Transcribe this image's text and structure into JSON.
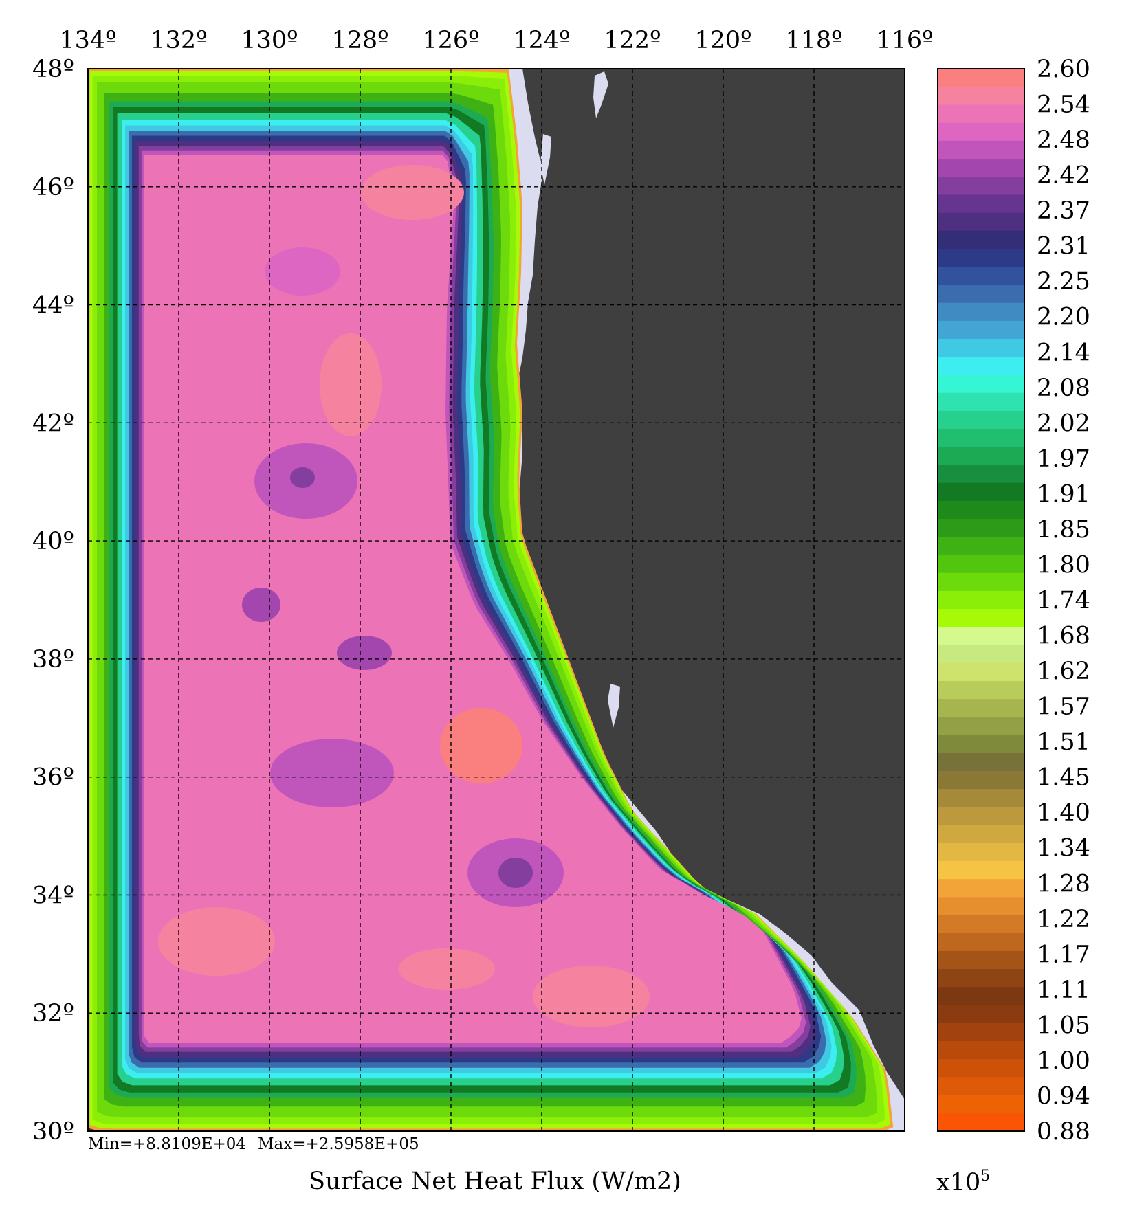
{
  "chart_data": {
    "type": "heatmap",
    "title": "Surface Net Heat Flux (W/m2)",
    "colorbar_unit": "x10",
    "colorbar_unit_exponent": "5",
    "stats": {
      "min_label": "Min=+8.8109E+04",
      "max_label": "Max=+2.5958E+05"
    },
    "x_axis": {
      "range": [
        -134,
        -116
      ],
      "ticks": [
        -134,
        -132,
        -130,
        -128,
        -126,
        -124,
        -122,
        -120,
        -118,
        -116
      ],
      "tick_labels": [
        "134º",
        "132º",
        "130º",
        "128º",
        "126º",
        "124º",
        "122º",
        "120º",
        "118º",
        "116º"
      ]
    },
    "y_axis": {
      "range": [
        30,
        48
      ],
      "ticks": [
        48,
        46,
        44,
        42,
        40,
        38,
        36,
        34,
        32,
        30
      ],
      "tick_labels": [
        "48º",
        "46º",
        "44º",
        "42º",
        "40º",
        "38º",
        "36º",
        "34º",
        "32º",
        "30º"
      ]
    },
    "grid": true,
    "colorbar": {
      "labels": [
        "2.60",
        "2.54",
        "2.48",
        "2.42",
        "2.37",
        "2.31",
        "2.25",
        "2.20",
        "2.14",
        "2.08",
        "2.02",
        "1.97",
        "1.91",
        "1.85",
        "1.80",
        "1.74",
        "1.68",
        "1.62",
        "1.57",
        "1.51",
        "1.45",
        "1.40",
        "1.34",
        "1.28",
        "1.22",
        "1.17",
        "1.11",
        "1.05",
        "1.00",
        "0.94",
        "0.88"
      ],
      "colors": [
        "#FA8080",
        "#F583A0",
        "#EC74B6",
        "#DE66C3",
        "#C055BC",
        "#A347AE",
        "#843E9E",
        "#663590",
        "#4E2F80",
        "#342D78",
        "#2C3A87",
        "#31529C",
        "#3B6CAE",
        "#3F8BC2",
        "#42A5D4",
        "#3FC9E3",
        "#3DEEF0",
        "#36F5D4",
        "#2EE3B0",
        "#28D08D",
        "#22BE6F",
        "#1DAA55",
        "#178F3E",
        "#127A22",
        "#1F8A1C",
        "#2D9B17",
        "#3EB214",
        "#52C60F",
        "#6DDA0C",
        "#8AEE09",
        "#A6FA08",
        "#D4FA8E",
        "#C8E880",
        "#CDE36B",
        "#B8CC5C",
        "#A7B54F",
        "#93A045",
        "#7F8A3A",
        "#77723A",
        "#8A7836",
        "#A58A3A",
        "#BC993D",
        "#CFA840",
        "#E2B843",
        "#F5C445",
        "#F2A438",
        "#E58F2E",
        "#D27A25",
        "#BD671F",
        "#A55418",
        "#8F4413",
        "#7C3810",
        "#8A3C10",
        "#A2420E",
        "#B84A0C",
        "#CC520A",
        "#DE5A08",
        "#EE6206",
        "#FA5504"
      ]
    }
  },
  "land_color": "#3F3F3F",
  "coast_color": "#DCDCF0"
}
